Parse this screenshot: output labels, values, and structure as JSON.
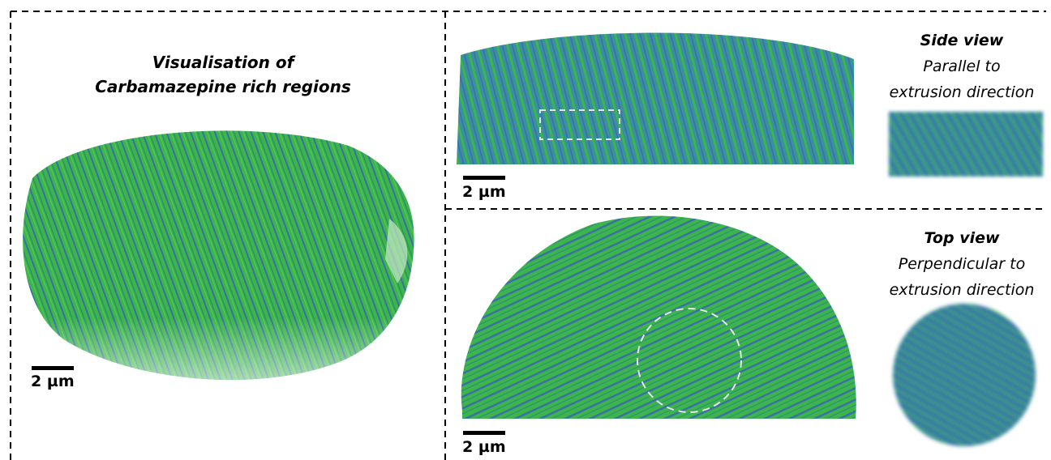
{
  "left_panel": {
    "title_line1": "Visualisation of",
    "title_line2": "Carbamazepine rich regions",
    "scale_label": "2 µm"
  },
  "side_panel": {
    "scale_label": "2 µm",
    "view_title": "Side view",
    "view_line1": "Parallel to",
    "view_line2": "extrusion direction"
  },
  "top_panel": {
    "scale_label": "2 µm",
    "view_title": "Top view",
    "view_line1": "Perpendicular to",
    "view_line2": "extrusion direction"
  },
  "colors": {
    "green": "#3cb54a",
    "blue": "#3a6fa8",
    "dash": "#000000"
  }
}
